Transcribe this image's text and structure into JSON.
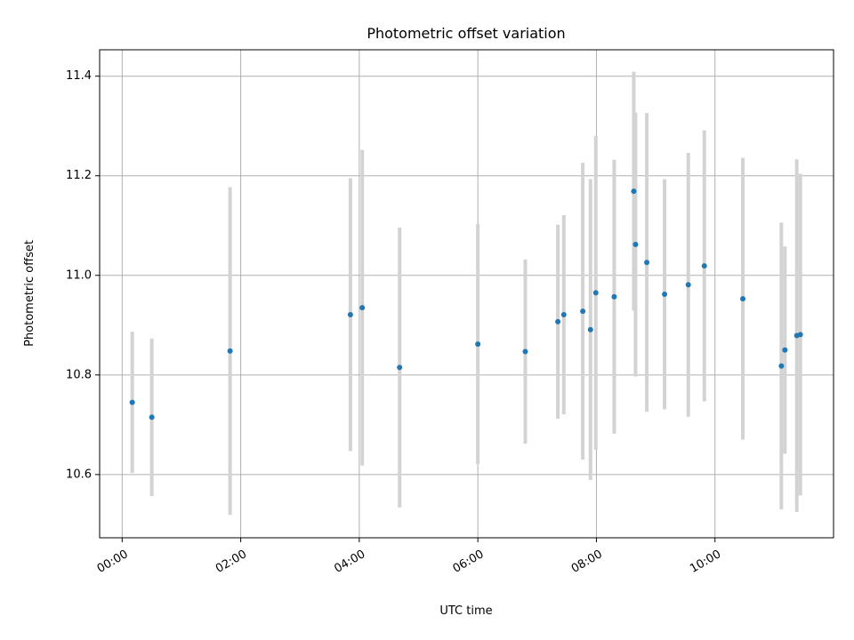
{
  "chart_data": {
    "type": "scatter",
    "title": "Photometric offset variation",
    "xlabel": "UTC time",
    "ylabel": "Photometric offset",
    "x_unit": "hours",
    "xlim": [
      -0.38,
      12.0
    ],
    "ylim": [
      10.473,
      11.453
    ],
    "x_ticks": [
      {
        "value": 0,
        "label": "00:00"
      },
      {
        "value": 2,
        "label": "02:00"
      },
      {
        "value": 4,
        "label": "04:00"
      },
      {
        "value": 6,
        "label": "06:00"
      },
      {
        "value": 8,
        "label": "08:00"
      },
      {
        "value": 10,
        "label": "10:00"
      }
    ],
    "y_ticks": [
      {
        "value": 10.6,
        "label": "10.6"
      },
      {
        "value": 10.8,
        "label": "10.8"
      },
      {
        "value": 11.0,
        "label": "11.0"
      },
      {
        "value": 11.2,
        "label": "11.2"
      },
      {
        "value": 11.4,
        "label": "11.4"
      }
    ],
    "grid": true,
    "colors": {
      "points": "#1f77b4",
      "errorbars": "#d3d3d3"
    },
    "points": [
      {
        "x": 0.17,
        "y": 10.745,
        "err": 0.142
      },
      {
        "x": 0.5,
        "y": 10.715,
        "err": 0.158
      },
      {
        "x": 1.82,
        "y": 10.848,
        "err": 0.329
      },
      {
        "x": 3.85,
        "y": 10.921,
        "err": 0.274
      },
      {
        "x": 4.05,
        "y": 10.935,
        "err": 0.317
      },
      {
        "x": 4.68,
        "y": 10.815,
        "err": 0.281
      },
      {
        "x": 6.0,
        "y": 10.862,
        "err": 0.241
      },
      {
        "x": 6.8,
        "y": 10.847,
        "err": 0.185
      },
      {
        "x": 7.35,
        "y": 10.907,
        "err": 0.195
      },
      {
        "x": 7.45,
        "y": 10.921,
        "err": 0.2
      },
      {
        "x": 7.77,
        "y": 10.928,
        "err": 0.298
      },
      {
        "x": 7.9,
        "y": 10.891,
        "err": 0.302
      },
      {
        "x": 7.99,
        "y": 10.965,
        "err": 0.315
      },
      {
        "x": 8.3,
        "y": 10.957,
        "err": 0.275
      },
      {
        "x": 8.63,
        "y": 11.169,
        "err": 0.24
      },
      {
        "x": 8.66,
        "y": 11.062,
        "err": 0.265
      },
      {
        "x": 8.85,
        "y": 11.026,
        "err": 0.3
      },
      {
        "x": 9.15,
        "y": 10.962,
        "err": 0.231
      },
      {
        "x": 9.55,
        "y": 10.981,
        "err": 0.265
      },
      {
        "x": 9.82,
        "y": 11.019,
        "err": 0.272
      },
      {
        "x": 10.47,
        "y": 10.953,
        "err": 0.283
      },
      {
        "x": 11.12,
        "y": 10.818,
        "err": 0.288
      },
      {
        "x": 11.18,
        "y": 10.85,
        "err": 0.208
      },
      {
        "x": 11.38,
        "y": 10.879,
        "err": 0.354
      },
      {
        "x": 11.44,
        "y": 10.881,
        "err": 0.323
      }
    ]
  }
}
